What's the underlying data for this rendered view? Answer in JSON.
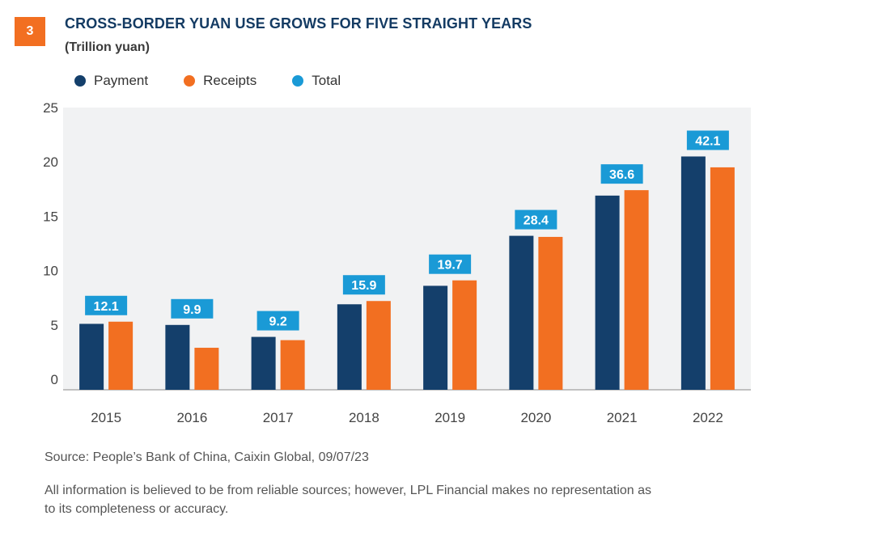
{
  "header": {
    "badge": "3",
    "title": "CROSS-BORDER YUAN USE GROWS FOR FIVE STRAIGHT YEARS",
    "subtitle": "(Trillion yuan)"
  },
  "legend": [
    {
      "label": "Payment",
      "color": "#143f6b"
    },
    {
      "label": "Receipts",
      "color": "#f26f21"
    },
    {
      "label": "Total",
      "color": "#1a9ad6"
    }
  ],
  "chart_data": {
    "type": "bar",
    "categories": [
      "2015",
      "2016",
      "2017",
      "2018",
      "2019",
      "2020",
      "2021",
      "2022"
    ],
    "series": [
      {
        "name": "Payment",
        "values": [
          5.1,
          5.0,
          3.9,
          6.9,
          8.6,
          13.2,
          16.9,
          20.5
        ]
      },
      {
        "name": "Receipts",
        "values": [
          5.3,
          2.9,
          3.6,
          7.2,
          9.1,
          13.1,
          17.4,
          19.5
        ]
      }
    ],
    "totals": {
      "name": "Total",
      "values": [
        12.1,
        9.9,
        9.2,
        15.9,
        19.7,
        28.4,
        36.6,
        42.1
      ]
    },
    "ylim": [
      0,
      25
    ],
    "yticks": [
      "0",
      "5",
      "10",
      "15",
      "20",
      "25"
    ],
    "grid": false,
    "legend_position": "top-left",
    "colors": {
      "payment": "#143f6b",
      "receipts": "#f26f21",
      "total": "#1a9ad6",
      "plot_bg": "#f1f2f3"
    }
  },
  "footer": {
    "source": "Source: People’s Bank of China, Caixin Global,  09/07/23",
    "disclaimer": "All information is believed to be from reliable sources; however, LPL Financial makes no representation as to its completeness or accuracy."
  }
}
